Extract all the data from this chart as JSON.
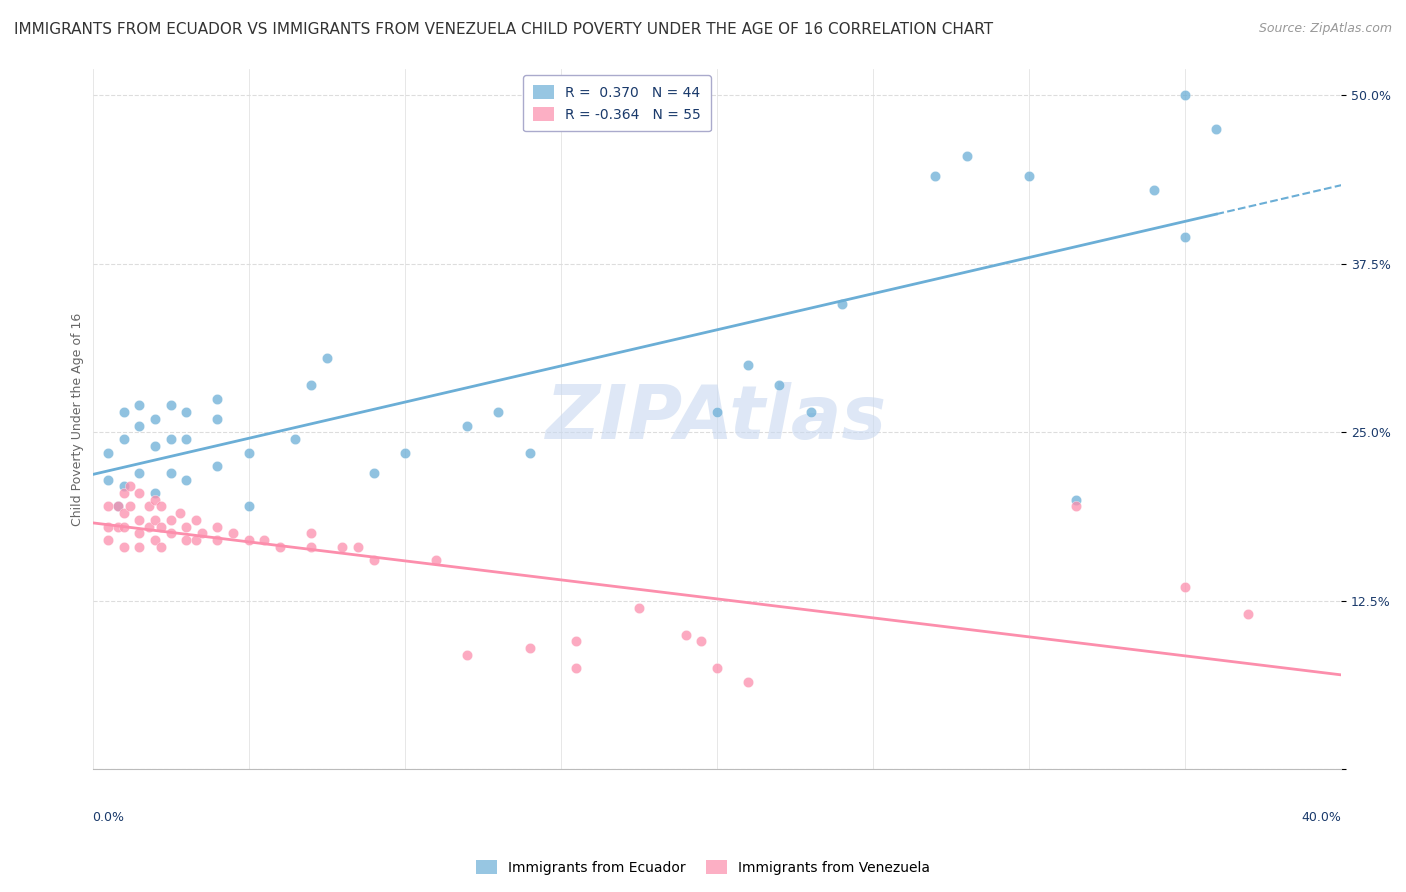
{
  "title": "IMMIGRANTS FROM ECUADOR VS IMMIGRANTS FROM VENEZUELA CHILD POVERTY UNDER THE AGE OF 16 CORRELATION CHART",
  "source": "Source: ZipAtlas.com",
  "ylabel": "Child Poverty Under the Age of 16",
  "ytick_labels": [
    "",
    "12.5%",
    "25.0%",
    "37.5%",
    "50.0%"
  ],
  "ytick_values": [
    0,
    0.125,
    0.25,
    0.375,
    0.5
  ],
  "xlim": [
    0.0,
    0.4
  ],
  "ylim": [
    0.0,
    0.52
  ],
  "ecuador_color": "#6baed6",
  "venezuela_color": "#fc8eac",
  "ecuador_R": 0.37,
  "ecuador_N": 44,
  "venezuela_R": -0.364,
  "venezuela_N": 55,
  "legend_label_ecuador": "Immigrants from Ecuador",
  "legend_label_venezuela": "Immigrants from Venezuela",
  "ecuador_scatter": [
    [
      0.005,
      0.215
    ],
    [
      0.005,
      0.235
    ],
    [
      0.008,
      0.195
    ],
    [
      0.01,
      0.21
    ],
    [
      0.01,
      0.245
    ],
    [
      0.01,
      0.265
    ],
    [
      0.015,
      0.22
    ],
    [
      0.015,
      0.255
    ],
    [
      0.015,
      0.27
    ],
    [
      0.02,
      0.205
    ],
    [
      0.02,
      0.24
    ],
    [
      0.02,
      0.26
    ],
    [
      0.025,
      0.22
    ],
    [
      0.025,
      0.245
    ],
    [
      0.025,
      0.27
    ],
    [
      0.03,
      0.215
    ],
    [
      0.03,
      0.245
    ],
    [
      0.03,
      0.265
    ],
    [
      0.04,
      0.225
    ],
    [
      0.04,
      0.26
    ],
    [
      0.04,
      0.275
    ],
    [
      0.05,
      0.195
    ],
    [
      0.05,
      0.235
    ],
    [
      0.065,
      0.245
    ],
    [
      0.07,
      0.285
    ],
    [
      0.075,
      0.305
    ],
    [
      0.09,
      0.22
    ],
    [
      0.1,
      0.235
    ],
    [
      0.12,
      0.255
    ],
    [
      0.13,
      0.265
    ],
    [
      0.14,
      0.235
    ],
    [
      0.2,
      0.265
    ],
    [
      0.21,
      0.3
    ],
    [
      0.22,
      0.285
    ],
    [
      0.23,
      0.265
    ],
    [
      0.24,
      0.345
    ],
    [
      0.27,
      0.44
    ],
    [
      0.28,
      0.455
    ],
    [
      0.3,
      0.44
    ],
    [
      0.315,
      0.2
    ],
    [
      0.34,
      0.43
    ],
    [
      0.35,
      0.395
    ],
    [
      0.35,
      0.5
    ],
    [
      0.36,
      0.475
    ]
  ],
  "venezuela_scatter": [
    [
      0.005,
      0.195
    ],
    [
      0.005,
      0.18
    ],
    [
      0.005,
      0.17
    ],
    [
      0.008,
      0.195
    ],
    [
      0.008,
      0.18
    ],
    [
      0.01,
      0.205
    ],
    [
      0.01,
      0.19
    ],
    [
      0.01,
      0.18
    ],
    [
      0.01,
      0.165
    ],
    [
      0.012,
      0.21
    ],
    [
      0.012,
      0.195
    ],
    [
      0.015,
      0.205
    ],
    [
      0.015,
      0.185
    ],
    [
      0.015,
      0.175
    ],
    [
      0.015,
      0.165
    ],
    [
      0.018,
      0.195
    ],
    [
      0.018,
      0.18
    ],
    [
      0.02,
      0.2
    ],
    [
      0.02,
      0.185
    ],
    [
      0.02,
      0.17
    ],
    [
      0.022,
      0.195
    ],
    [
      0.022,
      0.18
    ],
    [
      0.022,
      0.165
    ],
    [
      0.025,
      0.185
    ],
    [
      0.025,
      0.175
    ],
    [
      0.028,
      0.19
    ],
    [
      0.03,
      0.18
    ],
    [
      0.03,
      0.17
    ],
    [
      0.033,
      0.185
    ],
    [
      0.033,
      0.17
    ],
    [
      0.035,
      0.175
    ],
    [
      0.04,
      0.18
    ],
    [
      0.04,
      0.17
    ],
    [
      0.045,
      0.175
    ],
    [
      0.05,
      0.17
    ],
    [
      0.055,
      0.17
    ],
    [
      0.06,
      0.165
    ],
    [
      0.07,
      0.175
    ],
    [
      0.07,
      0.165
    ],
    [
      0.08,
      0.165
    ],
    [
      0.085,
      0.165
    ],
    [
      0.09,
      0.155
    ],
    [
      0.11,
      0.155
    ],
    [
      0.12,
      0.085
    ],
    [
      0.14,
      0.09
    ],
    [
      0.155,
      0.095
    ],
    [
      0.155,
      0.075
    ],
    [
      0.175,
      0.12
    ],
    [
      0.19,
      0.1
    ],
    [
      0.195,
      0.095
    ],
    [
      0.2,
      0.075
    ],
    [
      0.21,
      0.065
    ],
    [
      0.315,
      0.195
    ],
    [
      0.35,
      0.135
    ],
    [
      0.37,
      0.115
    ]
  ],
  "background_color": "#ffffff",
  "grid_color": "#dddddd",
  "text_color": "#1a3a6b",
  "watermark_color": "#c8d8f0",
  "title_fontsize": 11,
  "source_fontsize": 9,
  "axis_label_fontsize": 9,
  "tick_fontsize": 9,
  "legend_fontsize": 10
}
